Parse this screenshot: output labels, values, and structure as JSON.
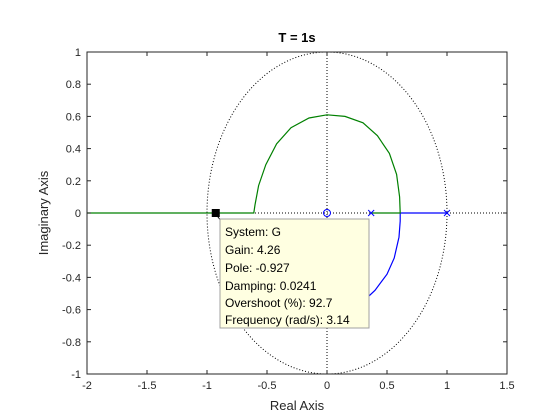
{
  "chart_data": {
    "type": "line",
    "title": "T = 1s",
    "xlabel": "Real Axis",
    "ylabel": "Imaginary Axis",
    "xlim": [
      -2,
      1.5
    ],
    "ylim": [
      -1,
      1
    ],
    "x_ticks": [
      "-2",
      "-1.5",
      "-1",
      "-0.5",
      "0",
      "0.5",
      "1",
      "1.5"
    ],
    "y_ticks": [
      "-1",
      "-0.8",
      "-0.6",
      "-0.4",
      "-0.2",
      "0",
      "0.2",
      "0.4",
      "0.6",
      "0.8",
      "1"
    ],
    "x_tick_values": [
      -2,
      -1.5,
      -1,
      -0.5,
      0,
      0.5,
      1,
      1.5
    ],
    "y_tick_values": [
      -1,
      -0.8,
      -0.6,
      -0.4,
      -0.2,
      0,
      0.2,
      0.4,
      0.6,
      0.8,
      1
    ],
    "grid": false,
    "unit_circle": true,
    "colors": {
      "branch_1": "#0000ff",
      "branch_2": "#008000",
      "reference": "#000000"
    },
    "open_loop_poles": [
      [
        0.368,
        0
      ],
      [
        1.0,
        0
      ]
    ],
    "open_loop_zeros": [
      [
        0.0,
        0
      ]
    ],
    "branches": [
      {
        "color": "#0000ff",
        "points": [
          [
            1.0,
            0
          ],
          [
            0.8,
            0
          ],
          [
            0.61,
            0
          ],
          [
            0.61,
            -0.05
          ],
          [
            0.6,
            -0.15
          ],
          [
            0.56,
            -0.28
          ],
          [
            0.5,
            -0.38
          ],
          [
            0.4,
            -0.48
          ],
          [
            0.3,
            -0.55
          ],
          [
            0.18,
            -0.6
          ]
        ]
      },
      {
        "color": "#008000",
        "points": [
          [
            0.368,
            0
          ],
          [
            0.5,
            0
          ],
          [
            0.61,
            0
          ],
          [
            0.605,
            0.1
          ],
          [
            0.58,
            0.24
          ],
          [
            0.52,
            0.37
          ],
          [
            0.42,
            0.48
          ],
          [
            0.3,
            0.56
          ],
          [
            0.15,
            0.6
          ],
          [
            0,
            0.61
          ],
          [
            -0.15,
            0.59
          ],
          [
            -0.3,
            0.53
          ],
          [
            -0.42,
            0.43
          ],
          [
            -0.51,
            0.3
          ],
          [
            -0.57,
            0.17
          ],
          [
            -0.6,
            0.05
          ],
          [
            -0.61,
            0
          ],
          [
            -0.9,
            0
          ],
          [
            -1.4,
            0
          ],
          [
            -2,
            0
          ]
        ]
      }
    ],
    "selected_point": [
      -0.927,
      0
    ],
    "datatip": {
      "system": "System: G",
      "gain": "Gain: 4.26",
      "pole": "Pole: -0.927",
      "damping": "Damping: 0.0241",
      "overshoot": "Overshoot (%): 92.7",
      "frequency": "Frequency (rad/s): 3.14"
    }
  }
}
